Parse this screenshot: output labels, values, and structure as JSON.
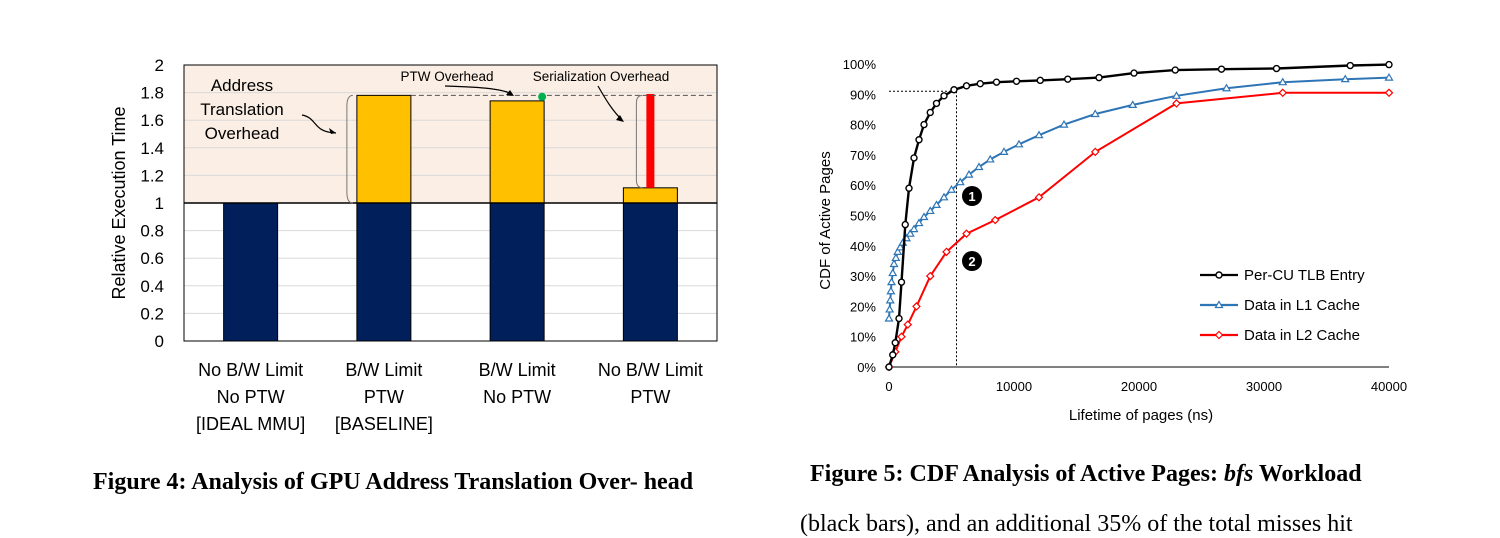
{
  "colors": {
    "ideal": "#001f5b",
    "overhead": "#ffc000",
    "serialization": "#ff0000",
    "ptw_marker": "#00b050",
    "shade": "#fbeee4",
    "l1": "#2e75b6",
    "l2": "#ff0000",
    "tlb": "#000000"
  },
  "chart_data": [
    {
      "type": "bar",
      "ylabel": "Relative Execution Time",
      "ylim": [
        0,
        2
      ],
      "yticks": [
        "0",
        "0.2",
        "0.4",
        "0.6",
        "0.8",
        "1",
        "1.2",
        "1.4",
        "1.6",
        "1.8",
        "2"
      ],
      "categories": [
        [
          "No B/W Limit",
          "No PTW",
          "[IDEAL MMU]"
        ],
        [
          "B/W Limit",
          "PTW",
          "[BASELINE]"
        ],
        [
          "B/W Limit",
          "No PTW"
        ],
        [
          "No B/W Limit",
          "PTW"
        ]
      ],
      "series": [
        {
          "name": "Ideal",
          "values": [
            1,
            1,
            1,
            1
          ]
        },
        {
          "name": "Overhead",
          "values": [
            0,
            0.78,
            0.74,
            0.11
          ]
        },
        {
          "name": "Serialization",
          "values": [
            0,
            0,
            0,
            0.68
          ]
        }
      ],
      "ptw_overhead_value": 1.77,
      "baseline_line": 1.78,
      "annotations": {
        "address": [
          "Address",
          "Translation",
          "Overhead"
        ],
        "ptw": "PTW Overhead",
        "serialization": "Serialization Overhead"
      }
    },
    {
      "type": "line",
      "xlabel": "Lifetime of pages (ns)",
      "ylabel": "CDF of Active Pages",
      "xlim": [
        0,
        40000
      ],
      "ylim": [
        0,
        100
      ],
      "xticks": [
        "0",
        "10000",
        "20000",
        "30000",
        "40000"
      ],
      "yticks": [
        "0%",
        "10%",
        "20%",
        "30%",
        "40%",
        "50%",
        "60%",
        "70%",
        "80%",
        "90%",
        "100%"
      ],
      "callouts": [
        "1",
        "2"
      ],
      "reference_x": 5400,
      "reference_y": 91,
      "series": [
        {
          "name": "Per-CU TLB Entry",
          "marker": "circle",
          "x": [
            0,
            300,
            500,
            800,
            1000,
            1300,
            1600,
            2000,
            2400,
            2800,
            3300,
            3800,
            4400,
            5200,
            6200,
            7300,
            8600,
            10200,
            12100,
            14300,
            16800,
            19600,
            22900,
            26600,
            31000,
            36900,
            40000
          ],
          "y": [
            0,
            4,
            8,
            16,
            28,
            47,
            59,
            69,
            75,
            80,
            84,
            87,
            89.5,
            91.5,
            92.8,
            93.5,
            94,
            94.3,
            94.6,
            95,
            95.5,
            97,
            98,
            98.3,
            98.5,
            99.5,
            99.8
          ]
        },
        {
          "name": "Data in L1 Cache",
          "marker": "triangle",
          "x": [
            0,
            50,
            100,
            150,
            200,
            300,
            400,
            550,
            700,
            900,
            1100,
            1400,
            1700,
            2000,
            2400,
            2800,
            3300,
            3800,
            4400,
            5000,
            5700,
            6400,
            7200,
            8100,
            9200,
            10400,
            12000,
            14000,
            16500,
            19500,
            23000,
            27000,
            31500,
            36500,
            40000
          ],
          "y": [
            16,
            19,
            22,
            25,
            28,
            31,
            34,
            36,
            38,
            39.5,
            41,
            42.5,
            44,
            45.5,
            47.5,
            49.5,
            51.5,
            53.5,
            56,
            58.5,
            61,
            63.5,
            66,
            68.5,
            71,
            73.5,
            76.5,
            80,
            83.5,
            86.5,
            89.5,
            92,
            94,
            95,
            95.5
          ]
        },
        {
          "name": "Data in L2 Cache",
          "marker": "diamond",
          "x": [
            0,
            500,
            1000,
            1500,
            2200,
            3300,
            4600,
            6200,
            8500,
            12000,
            16500,
            23000,
            31500,
            40000
          ],
          "y": [
            0,
            5,
            10,
            14,
            20,
            30,
            38,
            44,
            48.5,
            56,
            71,
            87,
            90.5,
            90.5
          ]
        }
      ]
    }
  ],
  "captions": {
    "fig4": "Figure 4:  Analysis of GPU Address Translation Over- head",
    "fig5_prefix": "Figure 5: CDF Analysis of Active Pages: ",
    "fig5_em": "bfs",
    "fig5_suffix": " Workload"
  },
  "body_fragment": "(black bars), and an additional 35% of the total misses hit"
}
